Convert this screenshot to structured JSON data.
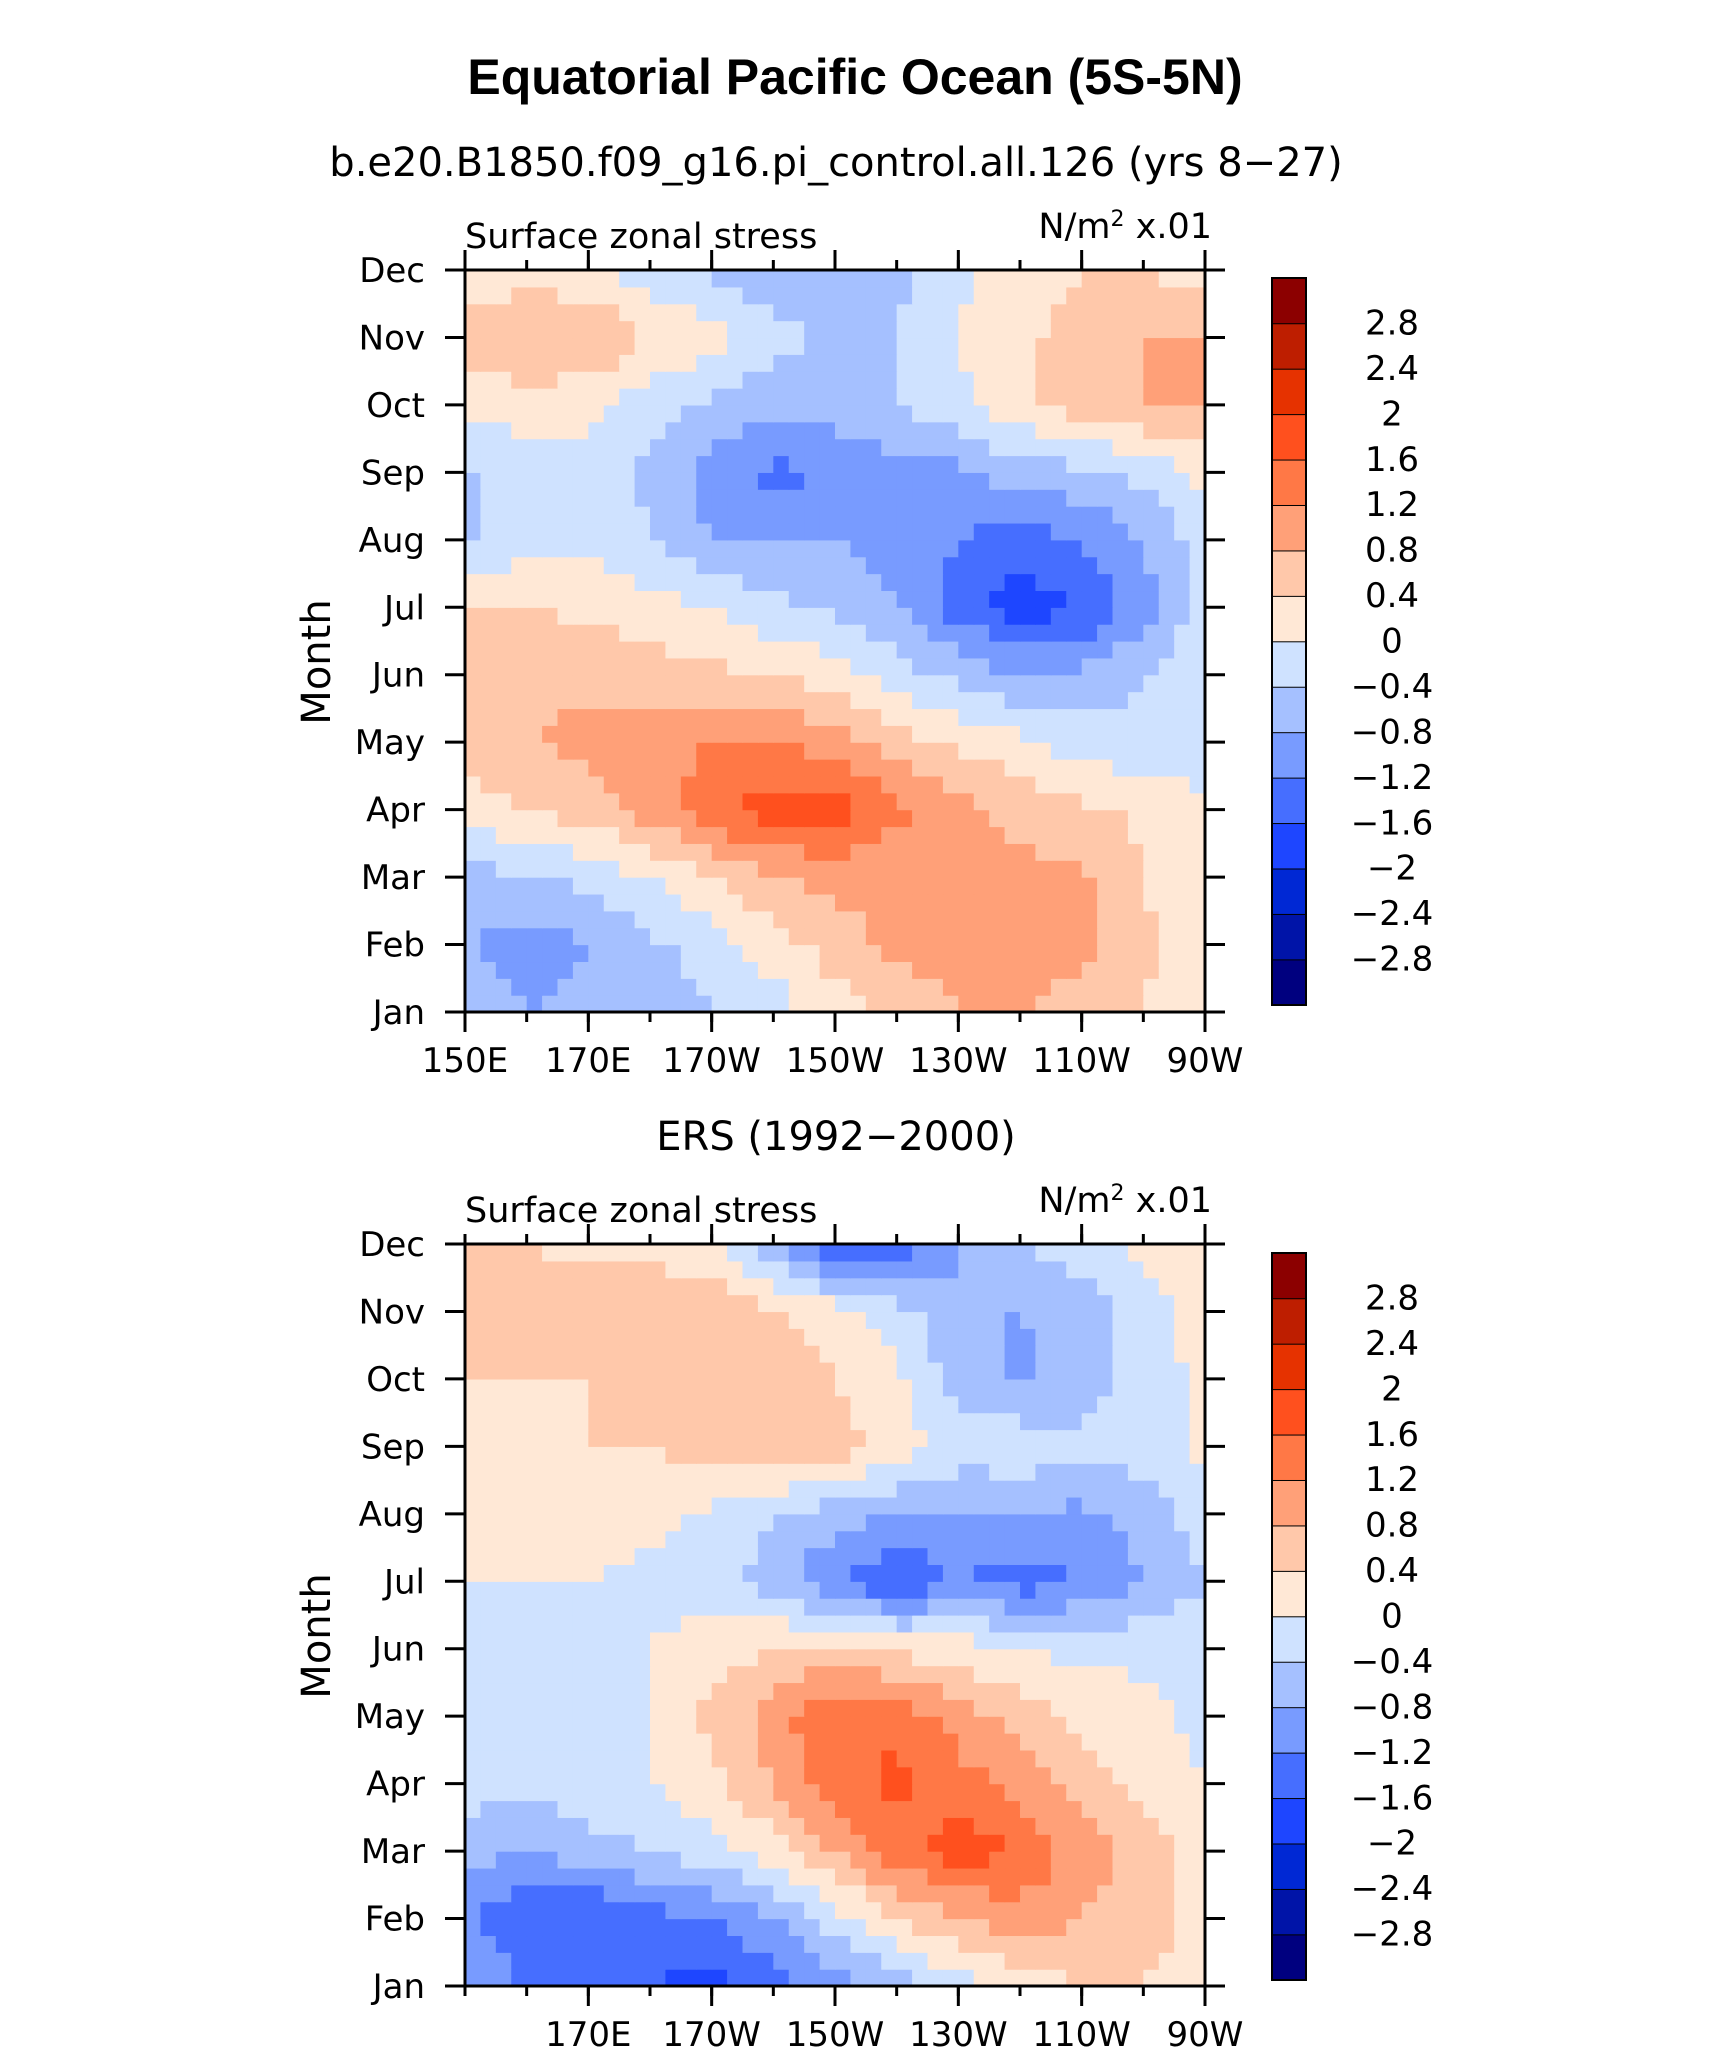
{
  "title": "Equatorial Pacific Ocean (5S-5N)",
  "palette": [
    "#00007f",
    "#0014a8",
    "#0028d4",
    "#1e46ff",
    "#466eff",
    "#789bff",
    "#a5c0ff",
    "#cfe2ff",
    "#ffe8d6",
    "#ffc8aa",
    "#ffa078",
    "#ff7846",
    "#ff501e",
    "#e63200",
    "#be1e00",
    "#8c0000"
  ],
  "levels": [
    -2.8,
    -2.4,
    -2,
    -1.6,
    -1.2,
    -0.8,
    -0.4,
    0,
    0.4,
    0.8,
    1.2,
    1.6,
    2,
    2.4,
    2.8
  ],
  "colorbar_labels": [
    "2.8",
    "2.4",
    "2",
    "1.6",
    "1.2",
    "0.8",
    "0.4",
    "0",
    "−0.4",
    "−0.8",
    "−1.2",
    "−1.6",
    "−2",
    "−2.4",
    "−2.8"
  ],
  "chart_data": [
    {
      "type": "heatmap",
      "title": "b.e20.B1850.f09_g16.pi_control.all.126 (yrs 8−27)",
      "left_label": "Surface zonal stress",
      "units_prefix": "N/m",
      "units_sup": "2",
      "units_suffix": " x.01",
      "ylabel": "Month",
      "xlim": [
        150,
        270
      ],
      "x_ticks": [
        150,
        170,
        190,
        210,
        230,
        250,
        270
      ],
      "x_tick_labels": [
        "150E",
        "170E",
        "170W",
        "150W",
        "130W",
        "110W",
        "90W"
      ],
      "months": [
        "Jan",
        "Feb",
        "Mar",
        "Apr",
        "May",
        "Jun",
        "Jul",
        "Aug",
        "Sep",
        "Oct",
        "Nov",
        "Dec"
      ],
      "lon_grid": [
        150,
        160,
        170,
        180,
        190,
        200,
        210,
        220,
        230,
        240,
        250,
        260,
        270
      ],
      "values": [
        [
          -0.6,
          -0.8,
          -0.7,
          -0.6,
          -0.4,
          -0.2,
          0.2,
          0.6,
          0.8,
          0.8,
          0.6,
          0.4,
          0.0
        ],
        [
          -0.8,
          -1.0,
          -0.8,
          -0.5,
          -0.2,
          0.2,
          0.6,
          0.9,
          0.9,
          1.1,
          0.9,
          0.5,
          0.0
        ],
        [
          -0.5,
          -0.5,
          -0.3,
          0.0,
          0.4,
          0.8,
          0.9,
          0.9,
          0.9,
          0.9,
          0.9,
          0.4,
          0.0
        ],
        [
          0.2,
          0.4,
          0.6,
          1.0,
          1.5,
          1.8,
          1.8,
          1.3,
          0.9,
          0.7,
          0.5,
          0.3,
          0.0
        ],
        [
          0.6,
          0.8,
          0.9,
          1.0,
          1.2,
          1.2,
          1.0,
          0.6,
          0.3,
          0.1,
          -0.2,
          -0.3,
          -0.1
        ],
        [
          0.6,
          0.7,
          0.7,
          0.6,
          0.5,
          0.4,
          0.2,
          -0.2,
          -0.5,
          -0.8,
          -0.7,
          -0.4,
          -0.1
        ],
        [
          0.4,
          0.4,
          0.3,
          0.2,
          0.0,
          -0.3,
          -0.5,
          -0.8,
          -1.4,
          -1.8,
          -1.6,
          -1.0,
          -0.2
        ],
        [
          -0.5,
          -0.2,
          -0.1,
          -0.4,
          -0.8,
          -0.8,
          -0.8,
          -1.0,
          -1.2,
          -1.4,
          -1.2,
          -0.8,
          -0.2
        ],
        [
          -0.5,
          -0.2,
          -0.1,
          -0.5,
          -1.0,
          -1.3,
          -1.2,
          -1.0,
          -0.9,
          -0.6,
          -0.5,
          -0.3,
          0.1
        ],
        [
          0.1,
          0.2,
          0.1,
          -0.2,
          -0.5,
          -0.7,
          -0.6,
          -0.4,
          -0.1,
          0.3,
          0.6,
          0.8,
          0.8
        ],
        [
          0.6,
          0.8,
          0.8,
          0.4,
          0.2,
          -0.2,
          -0.5,
          -0.4,
          0.0,
          0.3,
          0.6,
          0.8,
          0.8
        ],
        [
          0.2,
          0.2,
          0.1,
          -0.2,
          -0.5,
          -0.8,
          -0.8,
          -0.5,
          -0.1,
          0.2,
          0.4,
          0.4,
          0.2
        ]
      ],
      "colorbar": {
        "min": -3.2,
        "max": 3.2
      }
    },
    {
      "type": "heatmap",
      "title": "ERS (1992−2000)",
      "left_label": "Surface zonal stress",
      "units_prefix": "N/m",
      "units_sup": "2",
      "units_suffix": " x.01",
      "ylabel": "Month",
      "xlim": [
        150,
        270
      ],
      "x_ticks": [
        170,
        190,
        210,
        230,
        250,
        270
      ],
      "x_tick_labels": [
        "170E",
        "170W",
        "150W",
        "130W",
        "110W",
        "90W"
      ],
      "months": [
        "Jan",
        "Feb",
        "Mar",
        "Apr",
        "May",
        "Jun",
        "Jul",
        "Aug",
        "Sep",
        "Oct",
        "Nov",
        "Dec"
      ],
      "lon_grid": [
        150,
        160,
        170,
        180,
        190,
        200,
        210,
        220,
        230,
        240,
        250,
        260,
        270
      ],
      "values": [
        [
          -0.8,
          -1.2,
          -1.4,
          -1.6,
          -1.8,
          -1.4,
          -1.0,
          -0.6,
          -0.2,
          0.2,
          0.4,
          0.4,
          0.2
        ],
        [
          -1.2,
          -1.6,
          -1.6,
          -1.4,
          -1.2,
          -0.8,
          -0.2,
          0.4,
          0.8,
          1.0,
          0.8,
          0.6,
          0.2
        ],
        [
          -0.6,
          -0.8,
          -0.6,
          -0.4,
          -0.2,
          0.2,
          0.8,
          1.4,
          1.8,
          1.6,
          1.0,
          0.6,
          0.2
        ],
        [
          -0.2,
          -0.3,
          -0.1,
          0.0,
          0.3,
          0.8,
          1.4,
          1.7,
          1.4,
          1.0,
          0.6,
          0.3,
          0.0
        ],
        [
          -0.1,
          -0.2,
          -0.1,
          0.0,
          0.5,
          1.0,
          1.6,
          1.5,
          1.0,
          0.6,
          0.3,
          0.1,
          -0.1
        ],
        [
          -0.4,
          -0.2,
          -0.1,
          0.0,
          0.2,
          0.4,
          0.5,
          0.3,
          0.2,
          0.0,
          -0.1,
          -0.1,
          -0.1
        ],
        [
          0.0,
          0.0,
          0.0,
          -0.1,
          -0.2,
          -0.6,
          -1.2,
          -1.6,
          -1.2,
          -1.4,
          -1.2,
          -0.8,
          -0.4
        ],
        [
          0.3,
          0.3,
          0.3,
          0.1,
          -0.1,
          -0.4,
          -0.6,
          -0.8,
          -0.8,
          -0.8,
          -0.9,
          -0.6,
          -0.2
        ],
        [
          0.3,
          0.3,
          0.4,
          0.4,
          0.6,
          0.8,
          0.6,
          0.2,
          -0.2,
          -0.1,
          -0.3,
          -0.2,
          0.1
        ],
        [
          0.4,
          0.4,
          0.4,
          0.5,
          0.6,
          0.6,
          0.4,
          0.1,
          -0.6,
          -0.9,
          -0.6,
          -0.2,
          0.1
        ],
        [
          0.5,
          0.6,
          0.6,
          0.8,
          0.8,
          0.4,
          0.2,
          -0.2,
          -0.8,
          -0.8,
          -0.6,
          -0.2,
          0.2
        ],
        [
          0.4,
          0.4,
          0.3,
          0.2,
          0.0,
          -0.6,
          -1.6,
          -1.6,
          -0.8,
          -0.4,
          -0.2,
          0.1,
          0.1
        ]
      ],
      "colorbar": {
        "min": -3.2,
        "max": 3.2
      }
    }
  ]
}
